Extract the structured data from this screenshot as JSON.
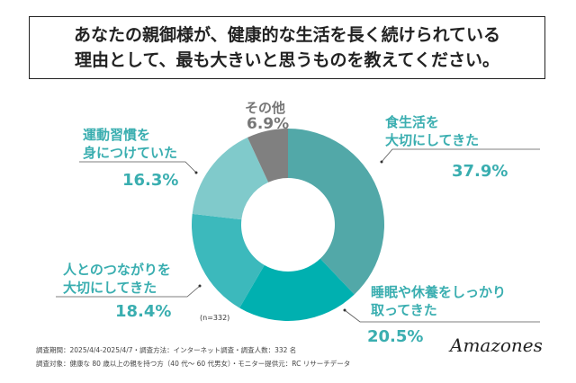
{
  "title_lines": [
    "あなたの親御様が、健康的な生活を長く続けられている",
    "理由として、最も大きいと思うものを教えてください。"
  ],
  "chart_data": {
    "type": "pie",
    "donut": true,
    "categories": [
      "食生活を大切にしてきた",
      "睡眠や休養をしっかり取ってきた",
      "人とのつながりを大切にしてきた",
      "運動習慣を身につけていた",
      "その他"
    ],
    "values": [
      37.9,
      20.5,
      18.4,
      16.3,
      6.9
    ],
    "value_labels": [
      "37.9%",
      "20.5%",
      "18.4%",
      "16.3%",
      "6.9%"
    ],
    "label_lines": [
      [
        "食生活を",
        "大切にしてきた"
      ],
      [
        "睡眠や休養をしっかり",
        "取ってきた"
      ],
      [
        "人とのつながりを",
        "大切にしてきた"
      ],
      [
        "運動習慣を",
        "身につけていた"
      ],
      [
        "その他"
      ]
    ],
    "colors": [
      "#52a8a8",
      "#00b0b0",
      "#3cb9bc",
      "#80cacb",
      "#808080"
    ],
    "sample_note": "(n=332)"
  },
  "footer": {
    "line1": "調査期間：2025/4/4-2025/4/7・調査方法：インターネット調査・調査人数：332 名",
    "line2": "調査対象：健康な 80 歳以上の親を持つ方（40 代～ 60 代男女）・モニター提供元：RC リサーチデータ"
  },
  "logo": "Amazones"
}
